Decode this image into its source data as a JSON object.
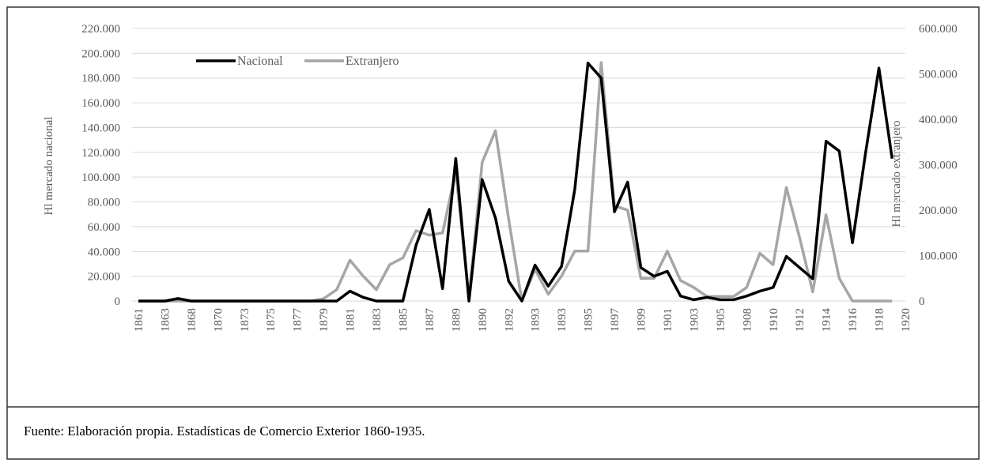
{
  "chart_data": {
    "type": "line",
    "y_label": "Hl mercado nacional",
    "y2_label": "Hl mercado extranjero",
    "categories": [
      "1861",
      null,
      "1863",
      null,
      "1868",
      null,
      "1870",
      null,
      "1873",
      null,
      "1875",
      null,
      "1877",
      null,
      "1879",
      null,
      "1881",
      null,
      "1883",
      null,
      "1885",
      null,
      "1887",
      null,
      "1889",
      null,
      "1890",
      null,
      "1892",
      null,
      "1893",
      null,
      "1893",
      null,
      "1895",
      null,
      "1897",
      null,
      "1899",
      null,
      "1901",
      null,
      "1903",
      null,
      "1905",
      null,
      "1908",
      null,
      "1910",
      null,
      "1912",
      null,
      "1914",
      null,
      "1916",
      null,
      "1918",
      null,
      "1920"
    ],
    "series": [
      {
        "name": "Nacional",
        "color": "#000000",
        "values": [
          0,
          0,
          0,
          2000,
          0,
          0,
          0,
          0,
          0,
          0,
          0,
          0,
          0,
          0,
          0,
          0,
          8000,
          3000,
          0,
          0,
          0,
          45000,
          74000,
          10000,
          115000,
          0,
          98000,
          67000,
          16000,
          0,
          29000,
          12000,
          28000,
          90000,
          192000,
          180000,
          72000,
          96000,
          27000,
          20000,
          24000,
          4000,
          1000,
          3000,
          1000,
          1000,
          4000,
          8000,
          11000,
          36000,
          27000,
          18000,
          129000,
          121000,
          47000,
          120000,
          188000,
          115000,
          null
        ]
      },
      {
        "name": "Extranjero",
        "color": "#a6a6a6",
        "axis": "y2",
        "values": [
          0,
          0,
          0,
          0,
          0,
          0,
          0,
          0,
          0,
          0,
          0,
          0,
          0,
          0,
          5000,
          25000,
          90000,
          55000,
          25000,
          80000,
          95000,
          155000,
          145000,
          150000,
          285000,
          5000,
          305000,
          375000,
          180000,
          0,
          70000,
          15000,
          55000,
          110000,
          110000,
          525000,
          210000,
          200000,
          50000,
          50000,
          110000,
          45000,
          30000,
          10000,
          10000,
          10000,
          30000,
          105000,
          80000,
          250000,
          140000,
          20000,
          190000,
          50000,
          0,
          0,
          0,
          0,
          null
        ]
      }
    ],
    "ylim": [
      0,
      220000
    ],
    "yticks": [
      0,
      {
        "value": 20000,
        "label": "20.000"
      },
      {
        "value": 40000,
        "label": "40.000"
      },
      {
        "value": 60000,
        "label": "60.000"
      },
      {
        "value": 80000,
        "label": "80.000"
      },
      {
        "value": 100000,
        "label": "100.000"
      },
      {
        "value": 120000,
        "label": "120.000"
      },
      {
        "value": 140000,
        "label": "140.000"
      },
      {
        "value": 160000,
        "label": "160.000"
      },
      {
        "value": 180000,
        "label": "180.000"
      },
      {
        "value": 200000,
        "label": "200.000"
      },
      {
        "value": 220000,
        "label": "220.000"
      }
    ],
    "y2lim": [
      0,
      600000
    ],
    "y2ticks": [
      0,
      {
        "value": 100000,
        "label": "100.000"
      },
      {
        "value": 200000,
        "label": "200.000"
      },
      {
        "value": 300000,
        "label": "300.000"
      },
      {
        "value": 400000,
        "label": "400.000"
      },
      {
        "value": 500000,
        "label": "500.000"
      },
      {
        "value": 600000,
        "label": "600.000"
      }
    ],
    "grid": true,
    "legend": "top",
    "source": "Fuente: Elaboración propia. Estadísticas de Comercio Exterior 1860-1935."
  }
}
